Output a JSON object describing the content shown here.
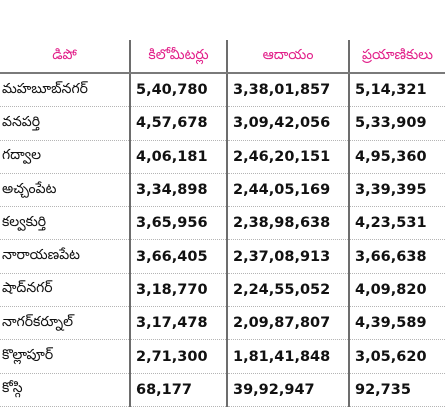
{
  "table": {
    "headers": [
      "డిపో",
      "కిలోమీటర్లు",
      "ఆదాయం",
      "ప్రయాణికులు"
    ],
    "rows": [
      [
        "మహబూబ్‌నగర్",
        "5,40,780",
        "3,38,01,857",
        "5,14,321"
      ],
      [
        "వనపర్తి",
        "4,57,678",
        "3,09,42,056",
        "5,33,909"
      ],
      [
        "గద్వాల",
        "4,06,181",
        "2,46,20,151",
        "4,95,360"
      ],
      [
        "అచ్చంపేట",
        "3,34,898",
        "2,44,05,169",
        "3,39,395"
      ],
      [
        "కల్వకుర్తి",
        "3,65,956",
        "2,38,98,638",
        "4,23,531"
      ],
      [
        "నారాయణపేట",
        "3,66,405",
        "2,37,08,913",
        "3,66,638"
      ],
      [
        "షాద్‌నగర్",
        "3,18,770",
        "2,24,55,052",
        "4,09,820"
      ],
      [
        "నాగర్‌కర్నూల్",
        "3,17,478",
        "2,09,87,807",
        "4,39,589"
      ],
      [
        "కొల్లాపూర్",
        "2,71,300",
        "1,81,41,848",
        "3,05,620"
      ],
      [
        "కోస్గి",
        "68,177",
        "39,92,947",
        "92,735"
      ]
    ]
  },
  "colors": {
    "header_text": "#e2208a",
    "rule": "#6d6d6d"
  }
}
